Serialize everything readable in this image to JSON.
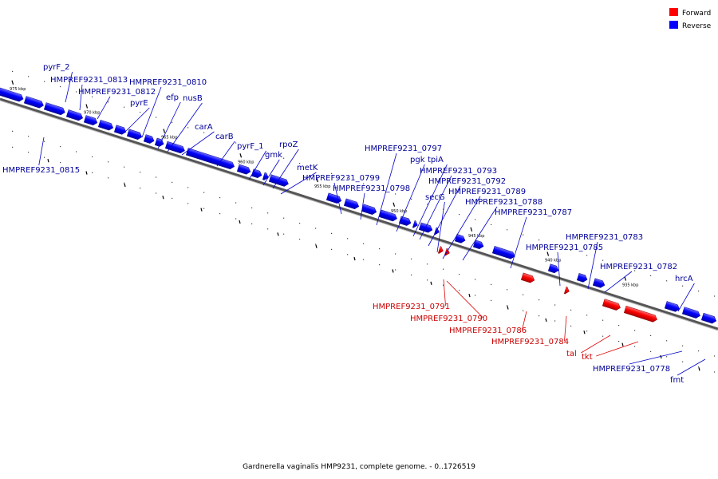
{
  "legend": {
    "items": [
      {
        "label": "Forward",
        "color": "#ff0000"
      },
      {
        "label": "Reverse",
        "color": "#0000ff"
      }
    ]
  },
  "caption": "Gardnerella vaginalis HMP9231, complete genome. - 0..1726519",
  "colors": {
    "forward": "#ff0000",
    "reverse": "#0000ff",
    "forward_label": "#cc0000",
    "reverse_label": "#000099",
    "backbone": "#888888"
  },
  "ticks": [
    "975 kbp",
    "970 kbp",
    "965 kbp",
    "960 kbp",
    "955 kbp",
    "950 kbp",
    "945 kbp",
    "940 kbp",
    "935 kbp"
  ],
  "genes": [
    {
      "label": "pyrF_2",
      "strand": "reverse"
    },
    {
      "label": "HMPREF9231_0813",
      "strand": "reverse"
    },
    {
      "label": "HMPREF9231_0812",
      "strand": "reverse"
    },
    {
      "label": "HMPREF9231_0810",
      "strand": "reverse"
    },
    {
      "label": "pyrE",
      "strand": "reverse"
    },
    {
      "label": "efp",
      "strand": "reverse"
    },
    {
      "label": "nusB",
      "strand": "reverse"
    },
    {
      "label": "HMPREF9231_0815",
      "strand": "reverse"
    },
    {
      "label": "carA",
      "strand": "reverse"
    },
    {
      "label": "carB",
      "strand": "reverse"
    },
    {
      "label": "pyrF_1",
      "strand": "reverse"
    },
    {
      "label": "rpoZ",
      "strand": "reverse"
    },
    {
      "label": "gmk",
      "strand": "reverse"
    },
    {
      "label": "metK",
      "strand": "reverse"
    },
    {
      "label": "HMPREF9231_0799",
      "strand": "reverse"
    },
    {
      "label": "HMPREF9231_0798",
      "strand": "reverse"
    },
    {
      "label": "HMPREF9231_0797",
      "strand": "reverse"
    },
    {
      "label": "pgk",
      "strand": "reverse"
    },
    {
      "label": "tpiA",
      "strand": "reverse"
    },
    {
      "label": "HMPREF9231_0793",
      "strand": "reverse"
    },
    {
      "label": "HMPREF9231_0792",
      "strand": "reverse"
    },
    {
      "label": "secG",
      "strand": "reverse"
    },
    {
      "label": "HMPREF9231_0789",
      "strand": "reverse"
    },
    {
      "label": "HMPREF9231_0788",
      "strand": "reverse"
    },
    {
      "label": "HMPREF9231_0787",
      "strand": "reverse"
    },
    {
      "label": "HMPREF9231_0783",
      "strand": "reverse"
    },
    {
      "label": "HMPREF9231_0785",
      "strand": "reverse"
    },
    {
      "label": "HMPREF9231_0782",
      "strand": "reverse"
    },
    {
      "label": "hrcA",
      "strand": "reverse"
    },
    {
      "label": "HMPREF9231_0791",
      "strand": "forward"
    },
    {
      "label": "HMPREF9231_0790",
      "strand": "forward"
    },
    {
      "label": "HMPREF9231_0786",
      "strand": "forward"
    },
    {
      "label": "HMPREF9231_0784",
      "strand": "forward"
    },
    {
      "label": "tal",
      "strand": "forward"
    },
    {
      "label": "tkt",
      "strand": "forward"
    },
    {
      "label": "HMPREF9231_0778",
      "strand": "reverse"
    },
    {
      "label": "fmt",
      "strand": "reverse"
    }
  ]
}
